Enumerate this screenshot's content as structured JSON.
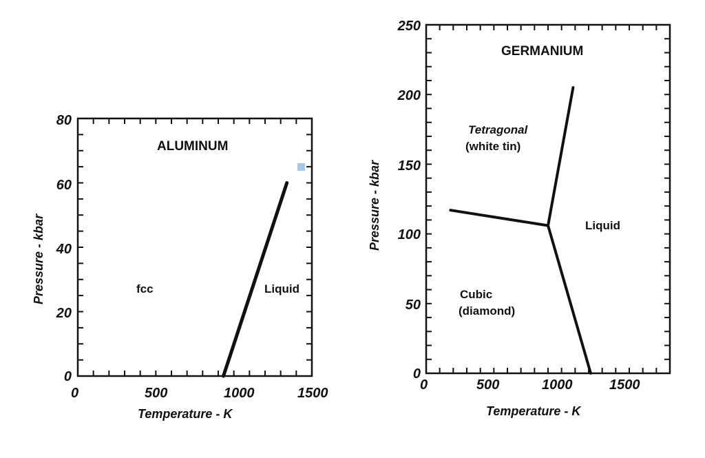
{
  "chart_data": [
    {
      "type": "line",
      "title": "ALUMINUM",
      "xlabel": "Temperature - K",
      "ylabel": "Pressure - kbar",
      "xlim": [
        0,
        1500
      ],
      "ylim": [
        0,
        80
      ],
      "xticks": [
        "0",
        "500",
        "1000",
        "1500"
      ],
      "yticks": [
        "0",
        "20",
        "40",
        "60",
        "80"
      ],
      "regions": [
        "fcc",
        "Liquid"
      ],
      "series": [
        {
          "x": [
            933,
            1340
          ],
          "y": [
            0,
            60
          ]
        }
      ],
      "marker_color": "#a8c8e8"
    },
    {
      "type": "line",
      "title": "GERMANIUM",
      "xlabel": "Temperature - K",
      "ylabel": "Pressure - kbar",
      "xlim": [
        0,
        1800
      ],
      "ylim": [
        0,
        250
      ],
      "xticks": [
        "0",
        "500",
        "1000",
        "1500"
      ],
      "yticks": [
        "0",
        "50",
        "100",
        "150",
        "200",
        "250"
      ],
      "regions": [
        "Tetragonal",
        "(white tin)",
        "Liquid",
        "Cubic",
        "(diamond)"
      ],
      "series": [
        {
          "x": [
            180,
            900
          ],
          "y": [
            117,
            106
          ]
        },
        {
          "x": [
            900,
            1085
          ],
          "y": [
            106,
            205
          ]
        },
        {
          "x": [
            900,
            1215
          ],
          "y": [
            106,
            0
          ]
        }
      ]
    }
  ]
}
